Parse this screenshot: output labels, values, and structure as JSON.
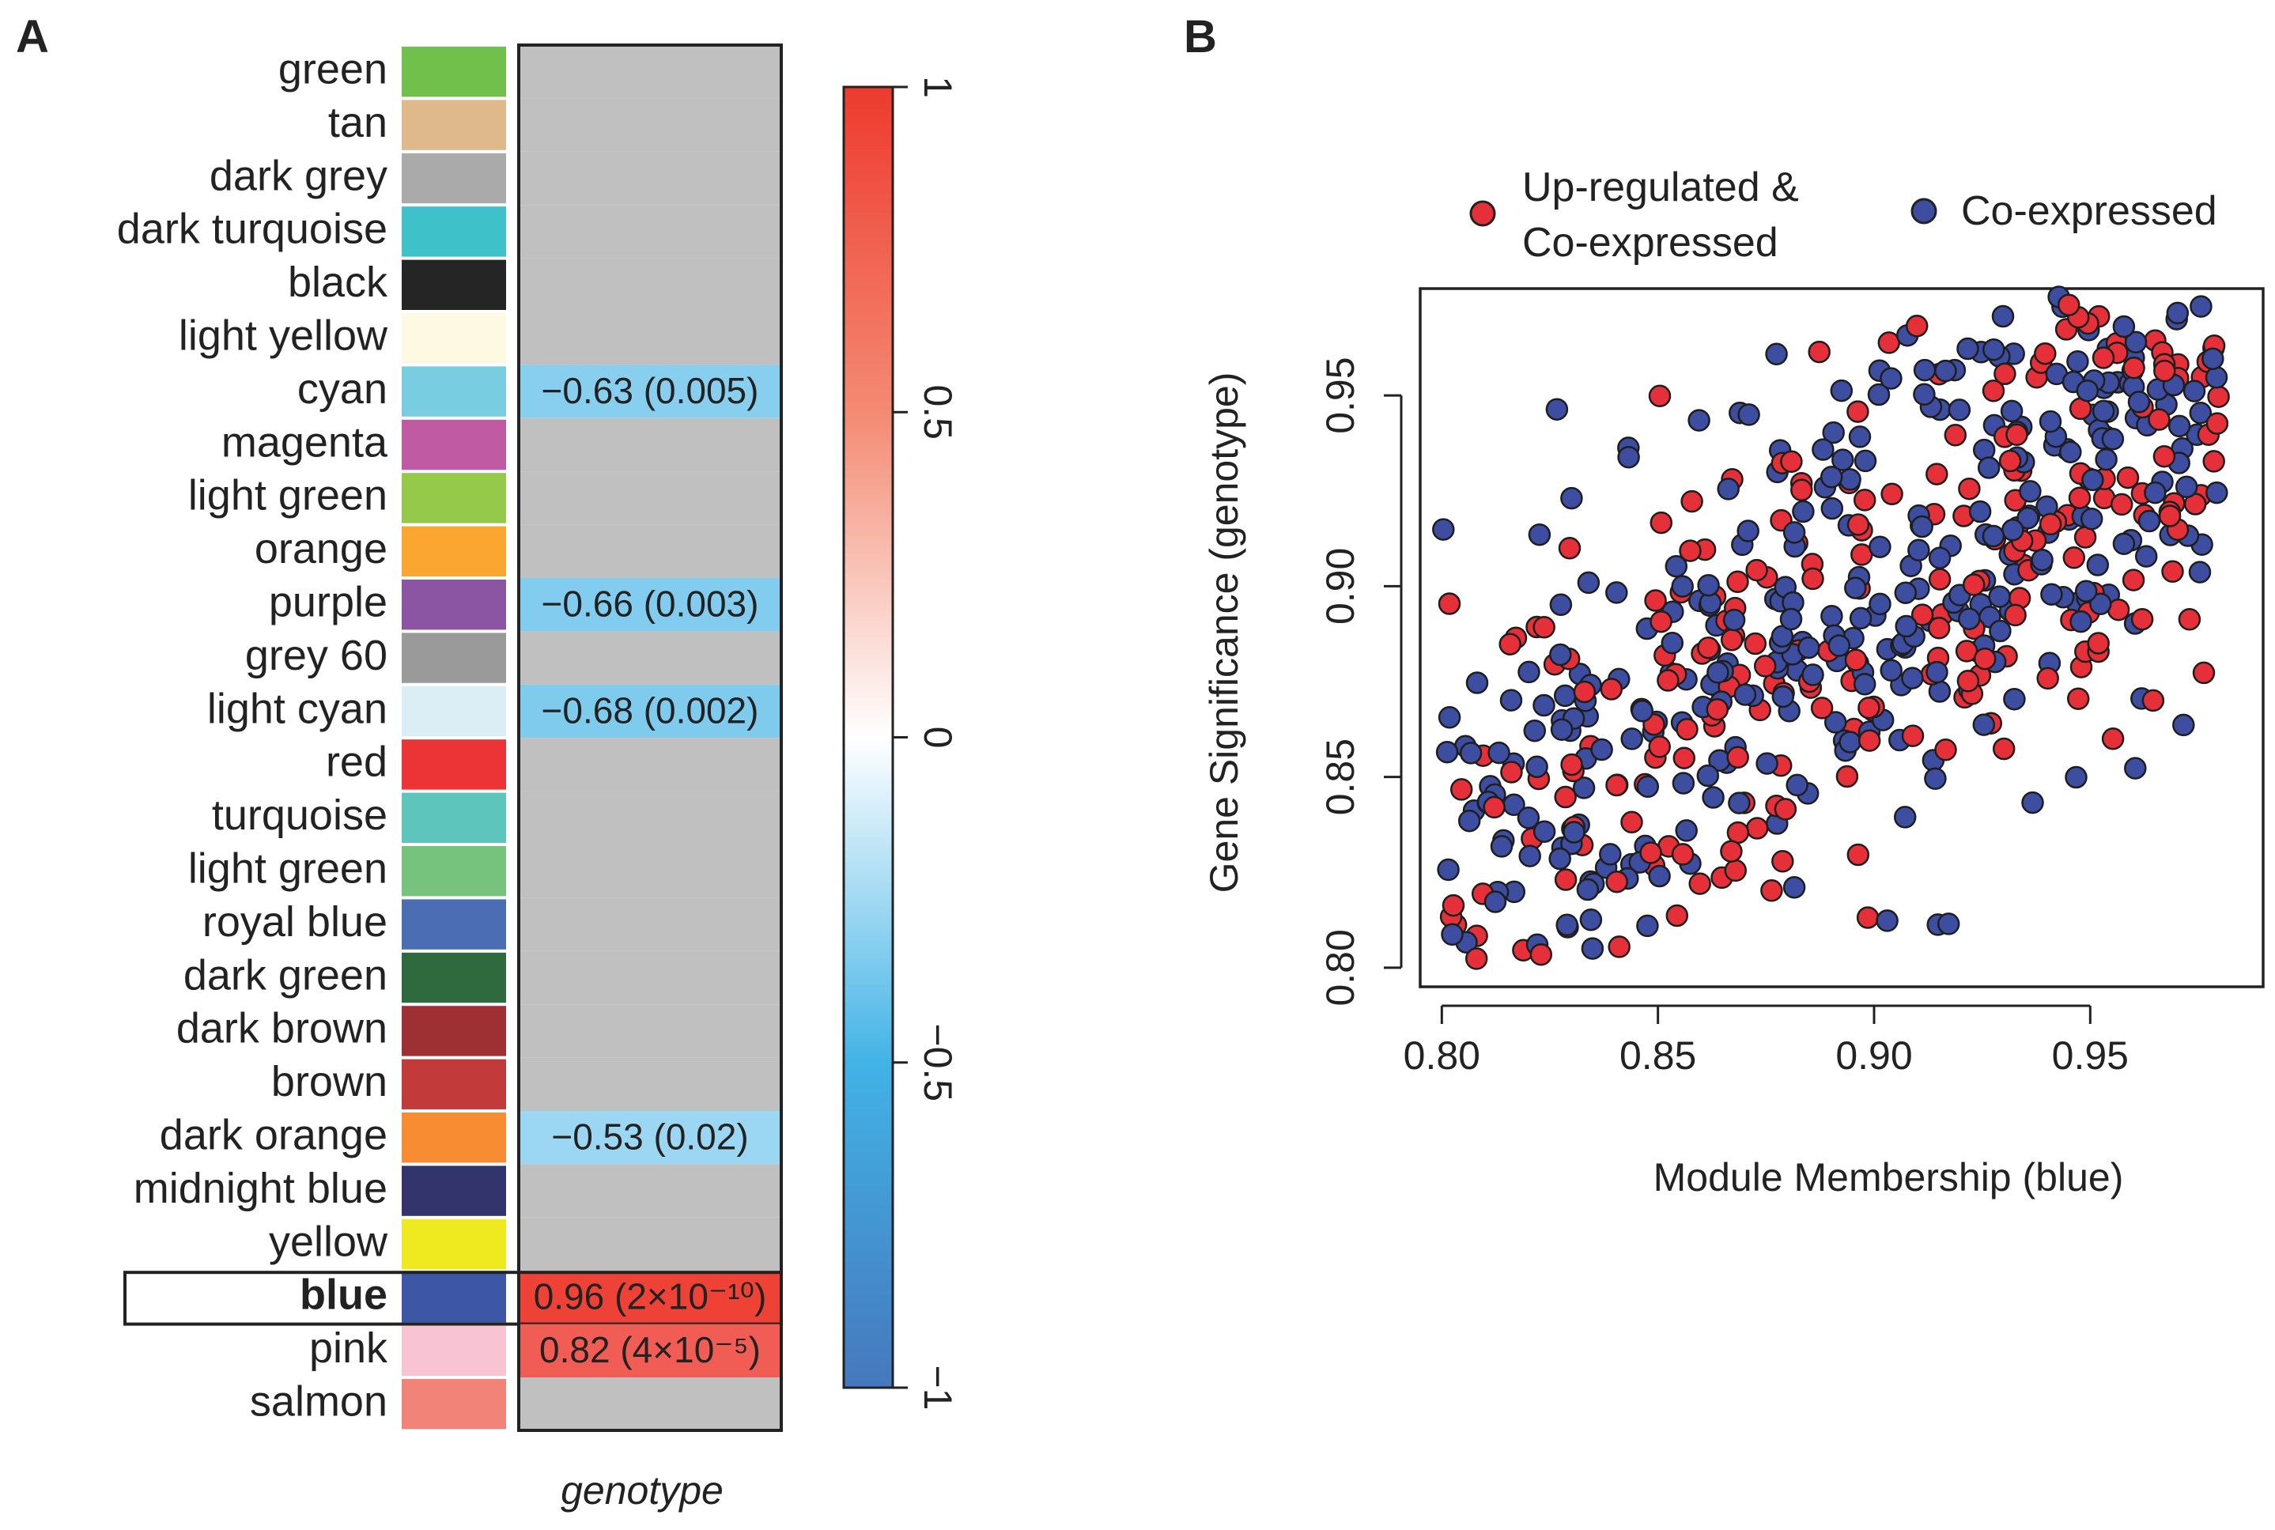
{
  "panel_a": {
    "label": "A",
    "column_label": "genotype",
    "modules": [
      {
        "name": "green",
        "color": "#72c04c"
      },
      {
        "name": "tan",
        "color": "#dfb88c"
      },
      {
        "name": "dark grey",
        "color": "#aaaaaa"
      },
      {
        "name": "dark turquoise",
        "color": "#3ec1c9"
      },
      {
        "name": "black",
        "color": "#252525"
      },
      {
        "name": "light yellow",
        "color": "#fdf9e3"
      },
      {
        "name": "cyan",
        "color": "#78cde0",
        "value": -0.63,
        "label": "−0.63 (0.005)"
      },
      {
        "name": "magenta",
        "color": "#bf5aa3"
      },
      {
        "name": "light green",
        "color": "#95c94a"
      },
      {
        "name": "orange",
        "color": "#fba631"
      },
      {
        "name": "purple",
        "color": "#8c55a3",
        "value": -0.66,
        "label": "−0.66 (0.003)"
      },
      {
        "name": "grey 60",
        "color": "#9a9a9a"
      },
      {
        "name": "light cyan",
        "color": "#dbeef5",
        "value": -0.68,
        "label": "−0.68 (0.002)"
      },
      {
        "name": "red",
        "color": "#ec3437"
      },
      {
        "name": "turquoise",
        "color": "#5dc5bc"
      },
      {
        "name": "light green",
        "color": "#76c37e"
      },
      {
        "name": "royal blue",
        "color": "#4a6db3"
      },
      {
        "name": "dark green",
        "color": "#2e6a3e"
      },
      {
        "name": "dark brown",
        "color": "#9e2f32"
      },
      {
        "name": "brown",
        "color": "#c23a3a"
      },
      {
        "name": "dark orange",
        "color": "#f78c33",
        "value": -0.53,
        "label": "−0.53 (0.02)"
      },
      {
        "name": "midnight blue",
        "color": "#33346b"
      },
      {
        "name": "yellow",
        "color": "#eeea1f"
      },
      {
        "name": "blue",
        "color": "#3d56a6",
        "value": 0.96,
        "label": "0.96 (2×10⁻¹⁰)",
        "highlight": true
      },
      {
        "name": "pink",
        "color": "#f8c3d2",
        "value": 0.82,
        "label": "0.82 (4×10⁻⁵)"
      },
      {
        "name": "salmon",
        "color": "#f28378"
      }
    ],
    "neutral_color": "#c0c0c0",
    "colorbar": {
      "min": -1,
      "max": 1,
      "ticks": [
        "1",
        "0.5",
        "0",
        "−0.5",
        "−1"
      ]
    }
  },
  "chart_data": {
    "type": "scatter",
    "panel_label": "B",
    "title": "",
    "xlabel": "Module Membership (blue)",
    "ylabel": "Gene Significance (genotype)",
    "xlim": [
      0.795,
      0.99
    ],
    "ylim": [
      0.795,
      0.978
    ],
    "xticks": [
      "0.80",
      "0.85",
      "0.90",
      "0.95"
    ],
    "yticks": [
      "0.80",
      "0.85",
      "0.90",
      "0.95"
    ],
    "legend_position": "top",
    "series": [
      {
        "name": "Up-regulated & Co-expressed",
        "legend_line1": "Up-regulated &",
        "legend_line2": "Co-expressed",
        "color": "#e5303a",
        "n": 240
      },
      {
        "name": "Co-expressed",
        "color": "#3d4da0",
        "n": 340
      }
    ]
  }
}
